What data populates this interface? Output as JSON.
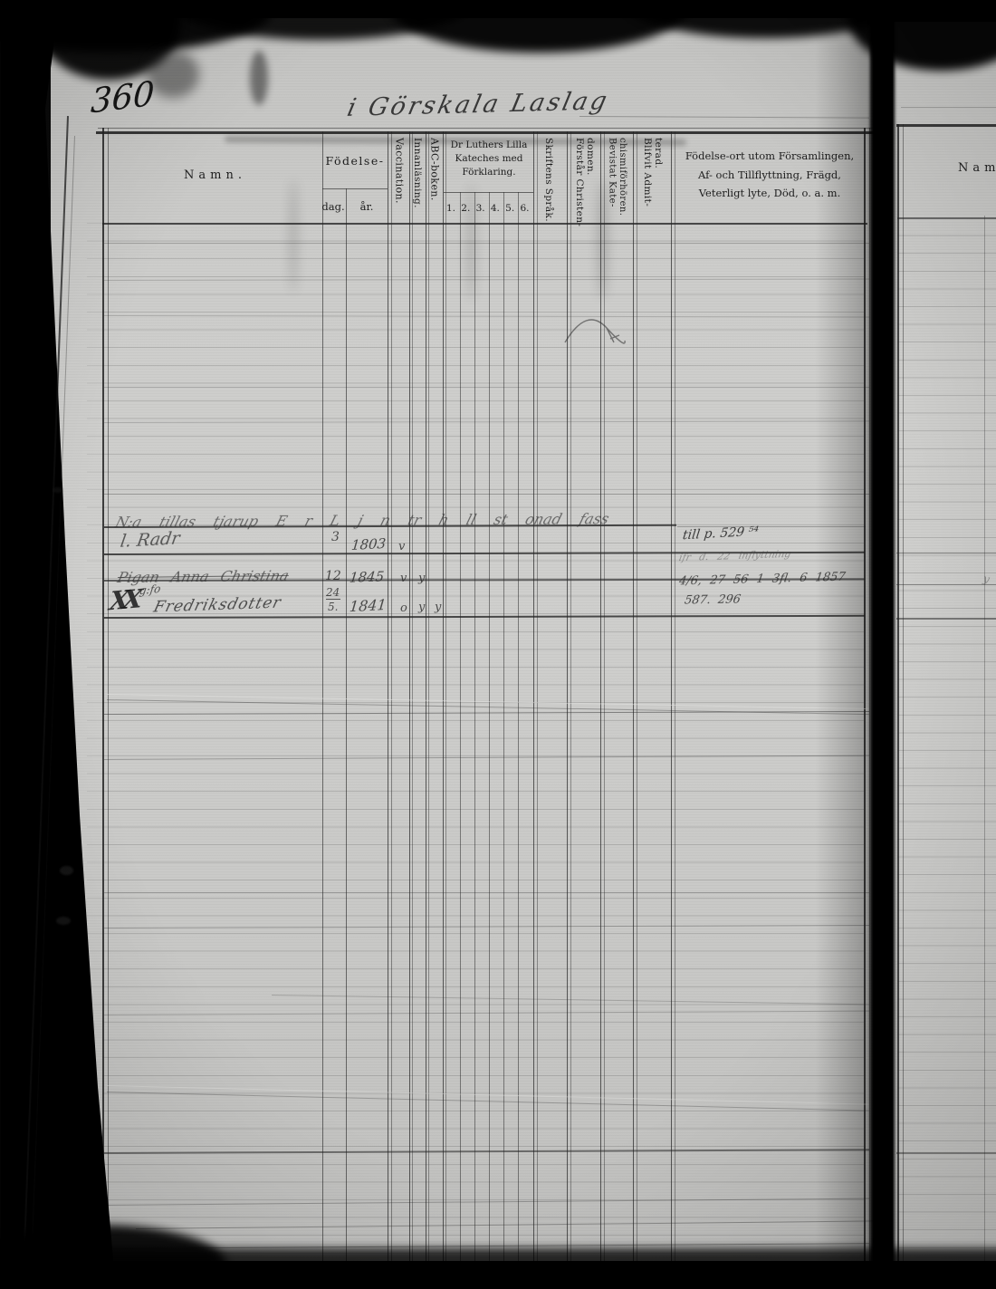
{
  "page": {
    "number": "360",
    "handwritten_title": "i Görskala Laslag"
  },
  "headers": {
    "namn": "Namn.",
    "fodelse_span": "Födelse-",
    "dag": "dag.",
    "ar": "år.",
    "vaccination": "Vaccination.",
    "innanlasning": "Innanläsning.",
    "abc_boken": "ABC-boken.",
    "kateches_span": "Dr Luthers Lilla\nKateches med\nFörklaring.",
    "kateches_cols": [
      "1.",
      "2.",
      "3.",
      "4.",
      "5.",
      "6."
    ],
    "skriftens_sprak": "Skriftens Språk.",
    "forstar_christendomen": "Förstår Christen-\ndomen.",
    "bevistat_katechismiforhoren": "Bevistat Kate-\nchismiförhören.",
    "blifvit_admitterad": "Blifvit Admit-\nterad.",
    "fodelseort": "Födelse-ort utom Församlingen,\nAf- och Tillflyttning, Frägd,\nVeterligt lyte, Död, o. a. m."
  },
  "next_page": {
    "namn": "Namn."
  },
  "entries": {
    "scrawl_line": "N:a tillas tjarup E r L j n tr h ll st onad fass",
    "scrawl_name": "l. Radr",
    "entry1": {
      "dag": "3",
      "ar": "1803",
      "mark1": "v",
      "note": "till p. 529 ⁵⁴"
    },
    "faint_note": "ifr d. 22 inflyttning",
    "entry2": {
      "name": "Pigan Anna Christina",
      "dag": "12",
      "ar": "1845",
      "mark1": "v",
      "mark2": "y",
      "note": "4/6, 27 56 1 3fl. 6 1857"
    },
    "entry3": {
      "monogram": "XX",
      "super": "g:fo",
      "name": "Fredriksdotter",
      "dag_num": "24",
      "dag_den": "5.",
      "ar": "1841",
      "mark1": "o",
      "mark2": "y",
      "mark3": "y",
      "note": "587. 296"
    },
    "stray_mark": "y"
  }
}
